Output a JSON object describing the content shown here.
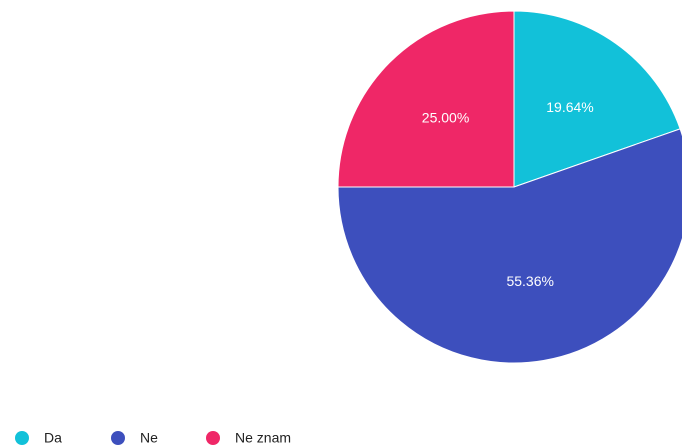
{
  "chart_data": {
    "type": "pie",
    "categories": [
      "Da",
      "Ne",
      "Ne znam"
    ],
    "values": [
      19.64,
      55.36,
      25
    ],
    "value_labels": [
      "19.64%",
      "55.36%",
      "25.00%"
    ],
    "colors": [
      "#12c1d9",
      "#3d4fbd",
      "#ef2767"
    ]
  }
}
